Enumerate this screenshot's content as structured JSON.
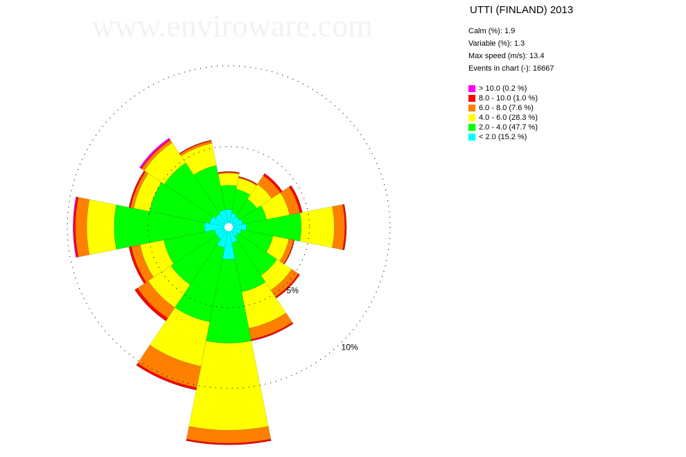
{
  "chart_data": {
    "type": "windrose",
    "watermark": "www.enviroware.com",
    "title": "UTTI (FINLAND) 2013",
    "stats": [
      "Calm (%): 1.9",
      "Variable (%): 1.3",
      "Max speed (m/s): 13.4",
      "Events in chart (-): 16667"
    ],
    "categories": [
      null,
      null,
      null,
      null,
      null,
      null,
      null,
      null,
      null,
      null,
      null,
      null,
      null,
      null,
      null,
      null
    ],
    "rlim": [
      0,
      14
    ],
    "rticks": [
      {
        "value": 5,
        "label": "5%"
      },
      {
        "value": 10,
        "label": "10%"
      }
    ],
    "series": [
      {
        "name": "> 10.0 (0.2 %)",
        "color": "#ff00ff",
        "values": [
          0,
          0,
          0,
          0,
          0,
          0,
          0,
          0,
          0,
          0,
          0,
          0,
          0.05,
          0,
          0.1,
          0
        ]
      },
      {
        "name": "8.0 - 10.0 (1.0 %)",
        "color": "#ff0000",
        "values": [
          0.05,
          0.05,
          0.15,
          0.15,
          0.1,
          0.05,
          0.1,
          0.1,
          0.1,
          0.15,
          0.2,
          0.15,
          0.1,
          0.1,
          0.05,
          0.05
        ]
      },
      {
        "name": "6.0 - 8.0 (7.6 %)",
        "color": "#ff8000",
        "values": [
          0.05,
          0.05,
          0.65,
          0.65,
          0.65,
          0.3,
          0.5,
          0.7,
          0.8,
          1.35,
          0.8,
          0.55,
          0.7,
          0.2,
          0.2,
          0.15
        ]
      },
      {
        "name": "4.0 - 6.0 (28.3 %)",
        "color": "#ffff00",
        "values": [
          0.75,
          0.7,
          1.1,
          1.45,
          2.05,
          1.0,
          1.1,
          2.3,
          5.4,
          2.8,
          1.7,
          1.5,
          1.7,
          1.0,
          1.5,
          1.4
        ]
      },
      {
        "name": "2.0 - 4.0 (47.7 %)",
        "color": "#00ff00",
        "values": [
          1.5,
          1.5,
          1.3,
          1.5,
          3.4,
          2.0,
          2.9,
          3.1,
          5.2,
          4.7,
          3.4,
          3.2,
          5.6,
          3.8,
          3.8,
          2.8
        ]
      },
      {
        "name": "< 2.0 (15.2 %)",
        "color": "#00ffff",
        "values": [
          1.1,
          0.9,
          0.8,
          0.9,
          1.1,
          0.8,
          0.7,
          1.0,
          2.0,
          1.3,
          0.9,
          0.9,
          1.5,
          1.2,
          1.0,
          1.1
        ]
      }
    ]
  }
}
